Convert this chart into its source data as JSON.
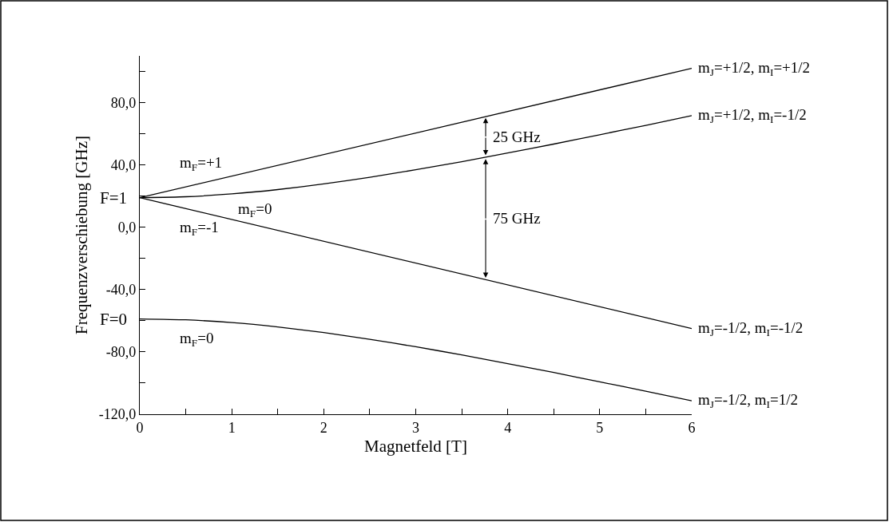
{
  "chart_data": {
    "type": "line",
    "xlabel": "Magnetfeld [T]",
    "ylabel": "Frequenzverschiebung [GHz]",
    "xlim": [
      0,
      6
    ],
    "ylim": [
      -120,
      110
    ],
    "xticks": [
      0,
      {
        "value": 0.5,
        "label": null
      },
      1,
      {
        "value": 1.5,
        "label": null
      },
      2,
      {
        "value": 2.5,
        "label": null
      },
      3,
      {
        "value": 3.5,
        "label": null
      },
      4,
      {
        "value": 4.5,
        "label": null
      },
      5,
      {
        "value": 5.5,
        "label": null
      },
      6
    ],
    "yticks": [
      {
        "value": -120,
        "label": "-120,0"
      },
      {
        "value": -100,
        "label": null
      },
      {
        "value": -80,
        "label": "-80,0"
      },
      {
        "value": -60,
        "label": null
      },
      {
        "value": -40,
        "label": "-40,0"
      },
      {
        "value": -20,
        "label": null
      },
      {
        "value": 0,
        "label": "0,0"
      },
      {
        "value": 20,
        "label": null
      },
      {
        "value": 40,
        "label": "40,0"
      },
      {
        "value": 60,
        "label": null
      },
      {
        "value": 80,
        "label": "80,0"
      },
      {
        "value": 100,
        "label": null
      }
    ],
    "grid": false,
    "legend": false,
    "marker": "none",
    "line_style": "solid",
    "series": [
      {
        "name": "m$_{J}$=+1/2, m$_{I}$=+1/2",
        "color": "#000000",
        "x": [
          0,
          6
        ],
        "values": [
          19.0,
          102.0
        ]
      },
      {
        "name": "m$_{J}$=+1/2, m$_{I}$=-1/2",
        "color": "#000000",
        "x": [
          0,
          0.5,
          1,
          1.5,
          2,
          2.5,
          3,
          3.5,
          4,
          4.5,
          5,
          5.5,
          6
        ],
        "values": [
          19.0,
          19.6,
          21.4,
          24.2,
          27.8,
          32.1,
          36.9,
          42.1,
          47.7,
          53.4,
          59.4,
          65.4,
          71.6
        ]
      },
      {
        "name": "m$_{J}$=-1/2, m$_{I}$=-1/2",
        "color": "#000000",
        "x": [
          0,
          6
        ],
        "values": [
          19.0,
          -65.0
        ]
      },
      {
        "name": "m$_{J}$=-1/2, m$_{I}$=1/2",
        "color": "#000000",
        "x": [
          0,
          0.5,
          1,
          1.5,
          2,
          2.5,
          3,
          3.5,
          4,
          4.5,
          5,
          5.5,
          6
        ],
        "values": [
          -58.8,
          -59.4,
          -61.2,
          -64.0,
          -67.6,
          -71.9,
          -76.7,
          -81.9,
          -87.5,
          -93.2,
          -99.2,
          -105.2,
          -111.4
        ]
      }
    ],
    "annotations": [
      "F=1",
      "F=0",
      "m$_{F}$=+1",
      "m$_{F}$=0",
      "m$_{F}$=-1",
      "m$_{F}$=0",
      {
        "text": "25 GHz",
        "x": 3.76,
        "y": 71.4
      },
      {
        "text": "75 GHz",
        "x": 3.76,
        "y": 45.0
      }
    ]
  }
}
